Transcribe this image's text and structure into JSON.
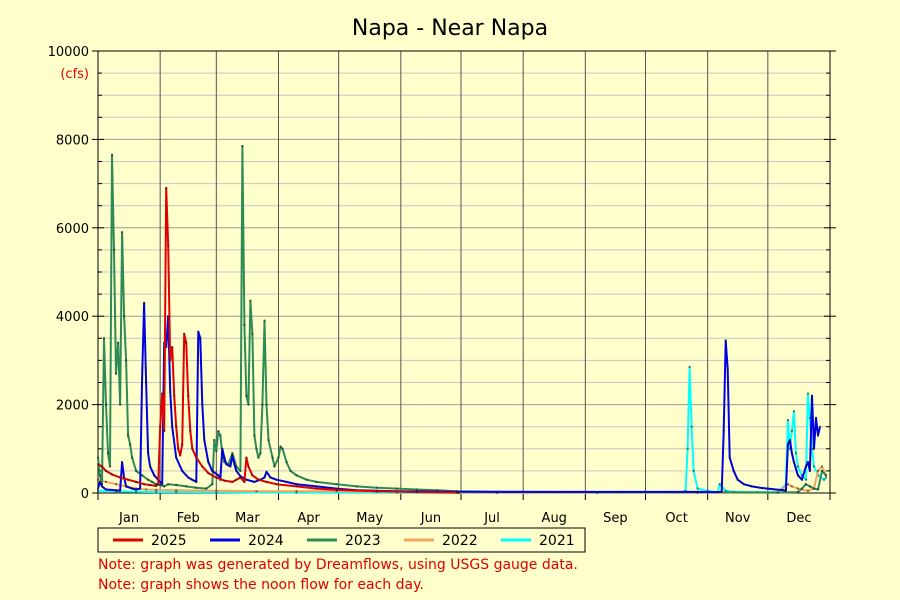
{
  "chart_data": {
    "type": "line",
    "title": "Napa - Near Napa",
    "ylabel": "(cfs)",
    "xlabel": "",
    "ylim": [
      0,
      10000
    ],
    "xlim": [
      1,
      366
    ],
    "x_unit": "day of year",
    "y_ticks": [
      "0",
      "2000",
      "4000",
      "6000",
      "8000",
      "10000"
    ],
    "months": [
      "Jan",
      "Feb",
      "Mar",
      "Apr",
      "May",
      "Jun",
      "Jul",
      "Aug",
      "Sep",
      "Oct",
      "Nov",
      "Dec"
    ],
    "grid": true,
    "legend_placement": "bottom",
    "series": [
      {
        "name": "2025",
        "color": "#e00000",
        "points": [
          [
            1,
            650
          ],
          [
            3,
            600
          ],
          [
            5,
            500
          ],
          [
            8,
            420
          ],
          [
            12,
            350
          ],
          [
            16,
            300
          ],
          [
            20,
            250
          ],
          [
            24,
            200
          ],
          [
            27,
            180
          ],
          [
            30,
            160
          ],
          [
            31,
            200
          ],
          [
            32,
            1500
          ],
          [
            33,
            2250
          ],
          [
            34,
            1400
          ],
          [
            35,
            6900
          ],
          [
            36,
            5600
          ],
          [
            37,
            3000
          ],
          [
            38,
            3300
          ],
          [
            39,
            2200
          ],
          [
            40,
            1500
          ],
          [
            41,
            1000
          ],
          [
            42,
            850
          ],
          [
            43,
            1100
          ],
          [
            44,
            3600
          ],
          [
            45,
            3400
          ],
          [
            46,
            2200
          ],
          [
            47,
            1400
          ],
          [
            48,
            1000
          ],
          [
            50,
            800
          ],
          [
            53,
            600
          ],
          [
            56,
            450
          ],
          [
            60,
            350
          ],
          [
            64,
            280
          ],
          [
            68,
            250
          ],
          [
            70,
            300
          ],
          [
            72,
            350
          ],
          [
            74,
            250
          ],
          [
            75,
            800
          ],
          [
            76,
            600
          ],
          [
            78,
            400
          ],
          [
            81,
            300
          ],
          [
            85,
            250
          ],
          [
            90,
            200
          ],
          [
            100,
            150
          ],
          [
            110,
            100
          ],
          [
            120,
            70
          ],
          [
            140,
            40
          ],
          [
            160,
            20
          ],
          [
            180,
            10
          ],
          [
            181,
            5
          ]
        ]
      },
      {
        "name": "2024",
        "color": "#0000e0",
        "points": [
          [
            1,
            100
          ],
          [
            2,
            250
          ],
          [
            3,
            150
          ],
          [
            5,
            80
          ],
          [
            10,
            60
          ],
          [
            12,
            50
          ],
          [
            13,
            700
          ],
          [
            14,
            350
          ],
          [
            15,
            150
          ],
          [
            18,
            100
          ],
          [
            20,
            80
          ],
          [
            22,
            100
          ],
          [
            23,
            2600
          ],
          [
            24,
            4300
          ],
          [
            25,
            2500
          ],
          [
            26,
            900
          ],
          [
            27,
            600
          ],
          [
            29,
            400
          ],
          [
            31,
            300
          ],
          [
            33,
            200
          ],
          [
            34,
            3400
          ],
          [
            35,
            3300
          ],
          [
            36,
            4000
          ],
          [
            37,
            2300
          ],
          [
            38,
            1500
          ],
          [
            40,
            800
          ],
          [
            43,
            500
          ],
          [
            46,
            350
          ],
          [
            48,
            300
          ],
          [
            50,
            250
          ],
          [
            51,
            3650
          ],
          [
            52,
            3500
          ],
          [
            53,
            2000
          ],
          [
            54,
            1200
          ],
          [
            56,
            700
          ],
          [
            58,
            500
          ],
          [
            61,
            400
          ],
          [
            62,
            300
          ],
          [
            63,
            1000
          ],
          [
            64,
            800
          ],
          [
            65,
            650
          ],
          [
            67,
            600
          ],
          [
            68,
            850
          ],
          [
            69,
            650
          ],
          [
            70,
            500
          ],
          [
            72,
            380
          ],
          [
            75,
            300
          ],
          [
            79,
            250
          ],
          [
            82,
            300
          ],
          [
            84,
            350
          ],
          [
            85,
            480
          ],
          [
            87,
            350
          ],
          [
            90,
            300
          ],
          [
            95,
            250
          ],
          [
            100,
            200
          ],
          [
            110,
            150
          ],
          [
            120,
            100
          ],
          [
            130,
            60
          ],
          [
            150,
            40
          ],
          [
            180,
            30
          ],
          [
            220,
            25
          ],
          [
            260,
            25
          ],
          [
            300,
            25
          ],
          [
            310,
            20
          ],
          [
            312,
            30
          ],
          [
            313,
            1400
          ],
          [
            314,
            3450
          ],
          [
            315,
            2800
          ],
          [
            316,
            800
          ],
          [
            318,
            500
          ],
          [
            320,
            300
          ],
          [
            323,
            200
          ],
          [
            327,
            150
          ],
          [
            331,
            120
          ],
          [
            335,
            100
          ],
          [
            339,
            80
          ],
          [
            343,
            60
          ],
          [
            344,
            50
          ],
          [
            345,
            1100
          ],
          [
            346,
            1200
          ],
          [
            347,
            900
          ],
          [
            348,
            700
          ],
          [
            350,
            400
          ],
          [
            352,
            300
          ],
          [
            354,
            600
          ],
          [
            355,
            700
          ],
          [
            356,
            500
          ],
          [
            357,
            2200
          ],
          [
            358,
            1000
          ],
          [
            359,
            1700
          ],
          [
            360,
            1300
          ],
          [
            361,
            1500
          ]
        ]
      },
      {
        "name": "2023",
        "color": "#2e8b57",
        "points": [
          [
            1,
            800
          ],
          [
            2,
            400
          ],
          [
            3,
            200
          ],
          [
            4,
            3500
          ],
          [
            5,
            2000
          ],
          [
            6,
            900
          ],
          [
            7,
            600
          ],
          [
            8,
            7650
          ],
          [
            9,
            5500
          ],
          [
            10,
            2700
          ],
          [
            11,
            3400
          ],
          [
            12,
            2000
          ],
          [
            13,
            5900
          ],
          [
            14,
            4000
          ],
          [
            15,
            3000
          ],
          [
            16,
            1300
          ],
          [
            17,
            1100
          ],
          [
            18,
            800
          ],
          [
            20,
            500
          ],
          [
            23,
            400
          ],
          [
            26,
            300
          ],
          [
            28,
            250
          ],
          [
            30,
            200
          ],
          [
            32,
            180
          ],
          [
            34,
            150
          ],
          [
            36,
            200
          ],
          [
            40,
            180
          ],
          [
            45,
            150
          ],
          [
            50,
            120
          ],
          [
            55,
            100
          ],
          [
            58,
            200
          ],
          [
            59,
            1200
          ],
          [
            60,
            950
          ],
          [
            61,
            1400
          ],
          [
            62,
            1300
          ],
          [
            63,
            900
          ],
          [
            64,
            700
          ],
          [
            66,
            650
          ],
          [
            68,
            900
          ],
          [
            70,
            600
          ],
          [
            72,
            500
          ],
          [
            73,
            7850
          ],
          [
            74,
            3800
          ],
          [
            75,
            2200
          ],
          [
            76,
            2000
          ],
          [
            77,
            4350
          ],
          [
            78,
            3600
          ],
          [
            79,
            1300
          ],
          [
            80,
            1000
          ],
          [
            81,
            800
          ],
          [
            82,
            900
          ],
          [
            83,
            2000
          ],
          [
            84,
            3900
          ],
          [
            85,
            2000
          ],
          [
            86,
            1200
          ],
          [
            88,
            800
          ],
          [
            89,
            600
          ],
          [
            91,
            800
          ],
          [
            92,
            1050
          ],
          [
            93,
            1000
          ],
          [
            95,
            700
          ],
          [
            97,
            500
          ],
          [
            100,
            400
          ],
          [
            105,
            300
          ],
          [
            110,
            250
          ],
          [
            120,
            200
          ],
          [
            130,
            150
          ],
          [
            140,
            120
          ],
          [
            150,
            100
          ],
          [
            160,
            80
          ],
          [
            170,
            60
          ],
          [
            180,
            40
          ],
          [
            200,
            30
          ],
          [
            250,
            20
          ],
          [
            300,
            15
          ],
          [
            340,
            10
          ],
          [
            350,
            20
          ],
          [
            352,
            100
          ],
          [
            354,
            200
          ],
          [
            356,
            150
          ],
          [
            358,
            100
          ],
          [
            360,
            80
          ],
          [
            362,
            500
          ],
          [
            364,
            400
          ]
        ]
      },
      {
        "name": "2022",
        "color": "#f4a460",
        "points": [
          [
            1,
            300
          ],
          [
            5,
            250
          ],
          [
            10,
            200
          ],
          [
            15,
            150
          ],
          [
            20,
            100
          ],
          [
            25,
            80
          ],
          [
            30,
            70
          ],
          [
            40,
            60
          ],
          [
            60,
            50
          ],
          [
            80,
            40
          ],
          [
            100,
            40
          ],
          [
            120,
            40
          ],
          [
            140,
            30
          ],
          [
            160,
            20
          ],
          [
            180,
            10
          ],
          [
            200,
            5
          ],
          [
            250,
            5
          ],
          [
            300,
            5
          ],
          [
            340,
            10
          ],
          [
            345,
            200
          ],
          [
            347,
            150
          ],
          [
            350,
            100
          ],
          [
            355,
            50
          ],
          [
            358,
            100
          ],
          [
            360,
            500
          ],
          [
            362,
            600
          ],
          [
            364,
            400
          ]
        ]
      },
      {
        "name": "2021",
        "color": "#00ffff",
        "points": [
          [
            1,
            50
          ],
          [
            10,
            40
          ],
          [
            20,
            30
          ],
          [
            30,
            20
          ],
          [
            40,
            20
          ],
          [
            60,
            15
          ],
          [
            100,
            10
          ],
          [
            150,
            5
          ],
          [
            200,
            5
          ],
          [
            250,
            5
          ],
          [
            290,
            5
          ],
          [
            294,
            50
          ],
          [
            295,
            1000
          ],
          [
            296,
            2850
          ],
          [
            297,
            1500
          ],
          [
            298,
            500
          ],
          [
            300,
            100
          ],
          [
            305,
            50
          ],
          [
            310,
            20
          ],
          [
            311,
            200
          ],
          [
            312,
            150
          ],
          [
            314,
            50
          ],
          [
            318,
            30
          ],
          [
            330,
            20
          ],
          [
            340,
            20
          ],
          [
            344,
            200
          ],
          [
            345,
            1650
          ],
          [
            346,
            1000
          ],
          [
            347,
            1400
          ],
          [
            348,
            1850
          ],
          [
            349,
            900
          ],
          [
            350,
            600
          ],
          [
            352,
            400
          ],
          [
            354,
            300
          ],
          [
            355,
            2250
          ],
          [
            356,
            1700
          ],
          [
            357,
            1000
          ],
          [
            358,
            600
          ],
          [
            360,
            400
          ],
          [
            363,
            300
          ],
          [
            364,
            350
          ]
        ]
      }
    ]
  },
  "notes": [
    "Note: graph was generated by Dreamflows, using USGS gauge data.",
    "Note: graph shows the noon flow for each day."
  ]
}
